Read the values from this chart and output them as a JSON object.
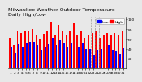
{
  "title": "Milwaukee Weather Outdoor Temperature",
  "subtitle": "Daily High/Low",
  "bar_width": 0.4,
  "legend_high": "High",
  "legend_low": "Low",
  "color_high": "#ff0000",
  "color_low": "#0000ff",
  "background_color": "#e8e8e8",
  "plot_bg": "#e8e8e8",
  "ylim": [
    0,
    105
  ],
  "yticks": [
    20,
    40,
    60,
    80,
    100
  ],
  "ytick_labels": [
    "20",
    "40",
    "60",
    "80",
    "100"
  ],
  "days": [
    1,
    2,
    3,
    4,
    5,
    6,
    7,
    8,
    9,
    10,
    11,
    12,
    13,
    14,
    15,
    16,
    17,
    18,
    19,
    20,
    21,
    22,
    23,
    24,
    25,
    26,
    27,
    28,
    29,
    30,
    31
  ],
  "highs": [
    62,
    48,
    78,
    72,
    78,
    78,
    80,
    68,
    60,
    70,
    75,
    95,
    68,
    88,
    78,
    68,
    78,
    92,
    68,
    78,
    62,
    68,
    72,
    78,
    62,
    68,
    72,
    68,
    72,
    68,
    78
  ],
  "lows": [
    44,
    32,
    50,
    45,
    52,
    54,
    55,
    48,
    38,
    45,
    50,
    62,
    48,
    58,
    52,
    45,
    52,
    60,
    45,
    52,
    40,
    40,
    28,
    38,
    40,
    45,
    48,
    38,
    35,
    30,
    42
  ],
  "dashed_vlines": [
    21.5,
    22.5,
    23.5,
    24.5
  ],
  "title_fontsize": 4.5,
  "tick_fontsize": 3.2,
  "legend_fontsize": 3.2,
  "ylabel_right": true
}
